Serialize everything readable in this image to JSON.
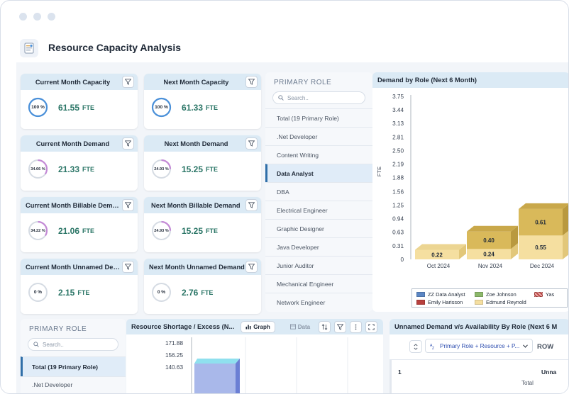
{
  "app": {
    "title": "Resource Capacity Analysis",
    "icon": "report-icon"
  },
  "kpis": {
    "current_capacity": {
      "title": "Current Month Capacity",
      "pct_label": "100 %",
      "pct": 1.0,
      "value": "61.55",
      "unit": "FTE"
    },
    "next_capacity": {
      "title": "Next Month Capacity",
      "pct_label": "100 %",
      "pct": 1.0,
      "value": "61.33",
      "unit": "FTE"
    },
    "current_demand": {
      "title": "Current Month Demand",
      "pct_label": "34.66 %",
      "pct": 0.3466,
      "value": "21.33",
      "unit": "FTE"
    },
    "next_demand": {
      "title": "Next Month Demand",
      "pct_label": "24.93 %",
      "pct": 0.2493,
      "value": "15.25",
      "unit": "FTE"
    },
    "current_billable": {
      "title": "Current Month Billable Demand",
      "pct_label": "34.22 %",
      "pct": 0.3422,
      "value": "21.06",
      "unit": "FTE"
    },
    "next_billable": {
      "title": "Next Month Billable Demand",
      "pct_label": "24.93 %",
      "pct": 0.2493,
      "value": "15.25",
      "unit": "FTE"
    },
    "current_unnamed": {
      "title": "Current Month Unnamed Demand",
      "pct_label": "0 %",
      "pct": 0,
      "value": "2.15",
      "unit": "FTE"
    },
    "next_unnamed": {
      "title": "Next Month Unnamed Demand",
      "pct_label": "0 %",
      "pct": 0,
      "value": "2.76",
      "unit": "FTE"
    }
  },
  "role_slicer": {
    "title": "PRIMARY ROLE",
    "search_placeholder": "Search..",
    "items": [
      "Total (19 Primary Role)",
      ".Net Developer",
      "Content Writing",
      "Data Analyst",
      "DBA",
      "Electrical Engineer",
      "Graphic Designer",
      "Java Developer",
      "Junior Auditor",
      "Mechanical Engineer",
      "Network Engineer"
    ],
    "selected": "Data Analyst"
  },
  "demand_chart": {
    "title": "Demand by Role (Next 6 Month)",
    "ylabel": "FTE",
    "yticks": [
      "3.75",
      "3.44",
      "3.13",
      "2.81",
      "2.50",
      "2.19",
      "1.88",
      "1.56",
      "1.25",
      "0.94",
      "0.63",
      "0.31",
      "0"
    ],
    "legend": [
      "ZZ Data Analyst",
      "Zoe Johnson",
      "Yas",
      "Emily Harisson",
      "Edmund Reynold"
    ]
  },
  "chart_data": [
    {
      "type": "bar",
      "title": "Demand by Role (Next 6 Month)",
      "ylabel": "FTE",
      "stacked": true,
      "ylim": [
        0,
        3.75
      ],
      "categories": [
        "Oct 2024",
        "Nov 2024",
        "Dec 2024"
      ],
      "series": [
        {
          "name": "Edmund Reynold",
          "values": [
            0.22,
            0.24,
            0.55
          ],
          "color": "#f5dfa0"
        },
        {
          "name": "Zoe Johnson",
          "values": [
            0,
            0.4,
            0.61
          ],
          "color": "#d9b95a"
        }
      ]
    },
    {
      "type": "bar",
      "title": "Resource Shortage / Excess (N...",
      "yticks": [
        "171.88",
        "156.25",
        "140.63"
      ]
    }
  ],
  "bottom_slicer": {
    "title": "PRIMARY ROLE",
    "search_placeholder": "Search..",
    "items": [
      "Total (19 Primary Role)",
      ".Net Developer"
    ]
  },
  "shortage_panel": {
    "title": "Resource Shortage / Excess (N...",
    "tab_graph": "Graph",
    "tab_data": "Data",
    "yticks": [
      "171.88",
      "156.25",
      "140.63"
    ]
  },
  "unnamed_panel": {
    "title": "Unnamed Demand v/s Availability By Role (Next 6 M",
    "dropdown": "Primary Role + Resource + P...",
    "row_label": "ROW",
    "row_number": "1",
    "col_label": "Unna",
    "total_label": "Total"
  },
  "colors": {
    "accent": "#2f6ea8",
    "header_bg": "#dbeaf5",
    "value_green": "#2a7566",
    "ring_blue": "#4a90d9",
    "ring_pink": "#c48ad6"
  }
}
